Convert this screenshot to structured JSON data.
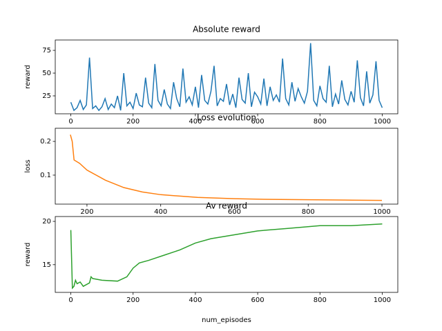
{
  "chart_data": [
    {
      "type": "line",
      "title": "Absolute reward",
      "ylabel": "reward",
      "color": "#1f77b4",
      "x": [
        0,
        10,
        20,
        30,
        40,
        50,
        60,
        70,
        80,
        90,
        100,
        110,
        120,
        130,
        140,
        150,
        160,
        170,
        180,
        190,
        200,
        210,
        220,
        230,
        240,
        250,
        260,
        270,
        280,
        290,
        300,
        310,
        320,
        330,
        340,
        350,
        360,
        370,
        380,
        390,
        400,
        410,
        420,
        430,
        440,
        450,
        460,
        470,
        480,
        490,
        500,
        510,
        520,
        530,
        540,
        550,
        560,
        570,
        580,
        590,
        600,
        610,
        620,
        630,
        640,
        650,
        660,
        670,
        680,
        690,
        700,
        710,
        720,
        730,
        740,
        750,
        760,
        770,
        780,
        790,
        800,
        810,
        820,
        830,
        840,
        850,
        860,
        870,
        880,
        890,
        900,
        910,
        920,
        930,
        940,
        950,
        960,
        970,
        980,
        990,
        1000
      ],
      "values": [
        18,
        9,
        12,
        20,
        10,
        15,
        67,
        11,
        14,
        9,
        13,
        22,
        10,
        16,
        12,
        25,
        9,
        50,
        14,
        18,
        11,
        28,
        15,
        13,
        45,
        17,
        12,
        60,
        20,
        14,
        32,
        16,
        11,
        40,
        22,
        13,
        55,
        18,
        24,
        15,
        35,
        12,
        48,
        20,
        16,
        30,
        58,
        14,
        22,
        19,
        38,
        15,
        27,
        12,
        45,
        21,
        17,
        50,
        13,
        29,
        24,
        16,
        44,
        14,
        35,
        20,
        26,
        18,
        66,
        22,
        15,
        40,
        19,
        33,
        24,
        17,
        30,
        83,
        20,
        14,
        36,
        22,
        18,
        58,
        13,
        27,
        16,
        42,
        21,
        15,
        30,
        18,
        64,
        23,
        14,
        52,
        17,
        26,
        63,
        20,
        12
      ],
      "xlim": [
        -50,
        1050
      ],
      "ylim": [
        5.3,
        86.4
      ],
      "xticks": [
        0,
        200,
        400,
        600,
        800,
        1000
      ],
      "yticks": [
        25,
        50,
        75
      ]
    },
    {
      "type": "line",
      "title": "Loss evolution",
      "ylabel": "loss",
      "color": "#ff7f0e",
      "x": [
        155,
        160,
        165,
        180,
        200,
        250,
        300,
        350,
        400,
        500,
        600,
        700,
        800,
        900,
        1000
      ],
      "values": [
        0.22,
        0.2,
        0.145,
        0.135,
        0.115,
        0.085,
        0.063,
        0.05,
        0.042,
        0.034,
        0.03,
        0.028,
        0.027,
        0.026,
        0.025
      ],
      "xlim": [
        114,
        1043
      ],
      "ylim": [
        0.014,
        0.239
      ],
      "xticks": [
        200,
        400,
        600,
        800,
        1000
      ],
      "yticks": [
        0.1,
        0.2
      ]
    },
    {
      "type": "line",
      "title": "Av reward",
      "ylabel": "reward",
      "xlabel": "num_episodes",
      "color": "#2ca02c",
      "x": [
        0,
        5,
        10,
        15,
        20,
        30,
        40,
        50,
        60,
        65,
        70,
        100,
        150,
        180,
        200,
        220,
        250,
        300,
        350,
        400,
        450,
        500,
        550,
        600,
        700,
        800,
        900,
        1000
      ],
      "values": [
        19,
        12.3,
        12.5,
        13.2,
        12.8,
        13.0,
        12.5,
        12.7,
        12.9,
        13.6,
        13.4,
        13.2,
        13.1,
        13.6,
        14.6,
        15.2,
        15.5,
        16.1,
        16.7,
        17.5,
        18.0,
        18.3,
        18.6,
        18.9,
        19.2,
        19.5,
        19.5,
        19.7
      ],
      "xlim": [
        -50,
        1050
      ],
      "ylim": [
        11.8,
        20.56
      ],
      "xticks": [
        0,
        200,
        400,
        600,
        800,
        1000
      ],
      "yticks": [
        15,
        20
      ]
    }
  ]
}
